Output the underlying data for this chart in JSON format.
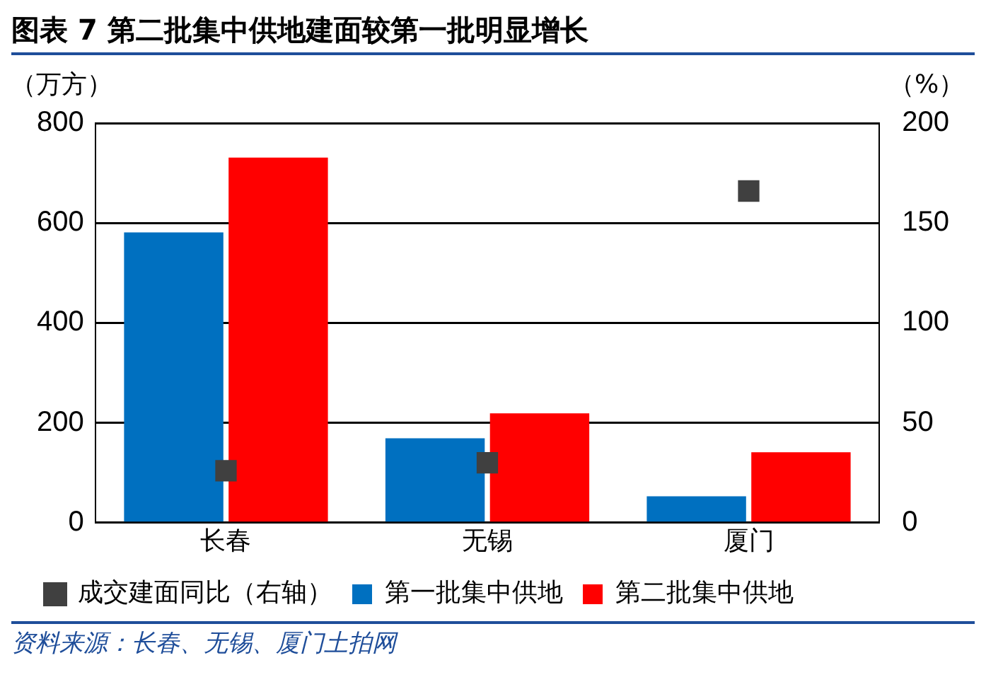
{
  "chart_data": {
    "type": "bar",
    "title": "图表 7 第二批集中供地建面较第一批明显增长",
    "ylabel": "（万方）",
    "y2label": "（%）",
    "categories": [
      "长春",
      "无锡",
      "厦门"
    ],
    "series": [
      {
        "name": "第一批集中供地",
        "color": "#0070c0",
        "values": [
          581,
          169,
          53
        ]
      },
      {
        "name": "第二批集中供地",
        "color": "#ff0000",
        "values": [
          731,
          219,
          141
        ]
      },
      {
        "name": "成交建面同比（右轴）",
        "type": "scatter",
        "axis": "y2",
        "marker": "square",
        "color": "#404040",
        "values": [
          26,
          30,
          166
        ]
      }
    ],
    "ylim": [
      0,
      800
    ],
    "yticks": [
      0,
      200,
      400,
      600,
      800
    ],
    "y2lim": [
      0,
      200
    ],
    "y2ticks": [
      0,
      50,
      100,
      150,
      200
    ],
    "grid": "y",
    "legend": "bottom",
    "annotations": [
      "资料来源：长春、无锡、厦门土拍网"
    ]
  }
}
